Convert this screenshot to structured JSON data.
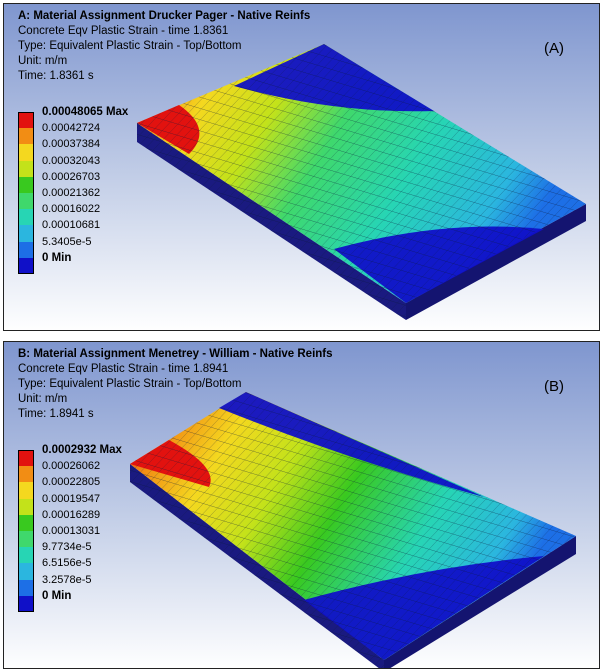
{
  "panels": [
    {
      "title": "A: Material Assignment Drucker Pager - Native Reinfs",
      "lines": [
        "Concrete Eqv Plastic Strain - time 1.8361",
        "Type: Equivalent Plastic Strain - Top/Bottom",
        "Unit: m/m",
        "Time: 1.8361 s"
      ],
      "tag": "(A)",
      "legend": [
        {
          "label": "0.00048065 Max",
          "color": "#e2120f"
        },
        {
          "label": "0.00042724",
          "color": "#f28d14"
        },
        {
          "label": "0.00037384",
          "color": "#f4d81f"
        },
        {
          "label": "0.00032043",
          "color": "#c3e21a"
        },
        {
          "label": "0.00026703",
          "color": "#39c91f"
        },
        {
          "label": "0.00021362",
          "color": "#3fd86c"
        },
        {
          "label": "0.00016022",
          "color": "#27d5b4"
        },
        {
          "label": "0.00010681",
          "color": "#2bb6df"
        },
        {
          "label": "5.3405e-5",
          "color": "#1d6fe6"
        },
        {
          "label": "0 Min",
          "color": "#1010c8"
        }
      ]
    },
    {
      "title": "B: Material Assignment Menetrey - William - Native Reinfs",
      "lines": [
        "Concrete Eqv Plastic Strain - time 1.8941",
        "Type: Equivalent Plastic Strain - Top/Bottom",
        "Unit: m/m",
        "Time: 1.8941 s"
      ],
      "tag": "(B)",
      "legend": [
        {
          "label": "0.0002932 Max",
          "color": "#e2120f"
        },
        {
          "label": "0.00026062",
          "color": "#f28d14"
        },
        {
          "label": "0.00022805",
          "color": "#f4d81f"
        },
        {
          "label": "0.00019547",
          "color": "#c3e21a"
        },
        {
          "label": "0.00016289",
          "color": "#39c91f"
        },
        {
          "label": "0.00013031",
          "color": "#3fd86c"
        },
        {
          "label": "9.7734e-5",
          "color": "#27d5b4"
        },
        {
          "label": "6.5156e-5",
          "color": "#2bb6df"
        },
        {
          "label": "3.2578e-5",
          "color": "#1d6fe6"
        },
        {
          "label": "0 Min",
          "color": "#1010c8"
        }
      ]
    }
  ]
}
